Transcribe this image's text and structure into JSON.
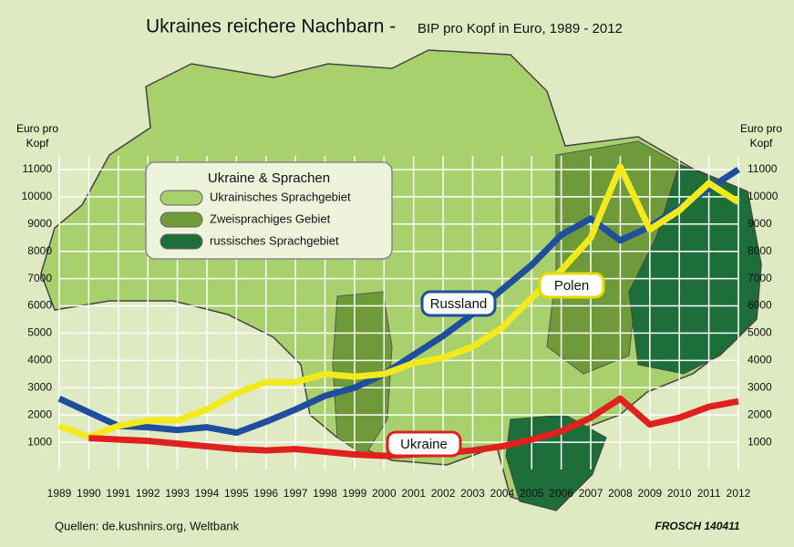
{
  "chart_data": {
    "type": "line",
    "title": "Ukraines reichere Nachbarn -",
    "subtitle": "BIP pro Kopf in Euro, 1989 - 2012",
    "ylabel": "Euro pro Kopf",
    "source": "Quellen: de.kushnirs.org, Weltbank",
    "signature": "FROSCH 140411",
    "x": [
      1989,
      1990,
      1991,
      1992,
      1993,
      1994,
      1995,
      1996,
      1997,
      1998,
      1999,
      2000,
      2001,
      2002,
      2003,
      2004,
      2005,
      2006,
      2007,
      2008,
      2009,
      2010,
      2011,
      2012
    ],
    "xlim": [
      1989,
      2012
    ],
    "xticks": [
      1989,
      1990,
      1991,
      1992,
      1993,
      1994,
      1995,
      1996,
      1997,
      1998,
      1999,
      2000,
      2001,
      2002,
      2003,
      2004,
      2005,
      2006,
      2007,
      2008,
      2009,
      2010,
      2011,
      2012
    ],
    "ylim": [
      0,
      11500
    ],
    "yticks": [
      1000,
      2000,
      3000,
      4000,
      5000,
      6000,
      7000,
      8000,
      9000,
      10000,
      11000
    ],
    "grid": true,
    "series": [
      {
        "name": "Russland",
        "color": "#1f4e9c",
        "values": [
          2600,
          2100,
          1600,
          1550,
          1450,
          1550,
          1350,
          1750,
          2200,
          2700,
          3000,
          3500,
          4200,
          4900,
          5700,
          6600,
          7500,
          8600,
          9200,
          8400,
          8900,
          9600,
          10300,
          11000
        ]
      },
      {
        "name": "Polen",
        "color": "#f2ea1a",
        "values": [
          1600,
          1200,
          1600,
          1800,
          1800,
          2200,
          2800,
          3200,
          3200,
          3500,
          3400,
          3500,
          3900,
          4100,
          4500,
          5200,
          6300,
          7300,
          8500,
          11100,
          8800,
          9500,
          10500,
          9800
        ]
      },
      {
        "name": "Ukraine",
        "color": "#e0201f",
        "values": [
          null,
          1150,
          1100,
          1050,
          950,
          850,
          750,
          700,
          750,
          650,
          550,
          500,
          550,
          600,
          700,
          850,
          1100,
          1400,
          1900,
          2600,
          1650,
          1900,
          2300,
          2500
        ]
      }
    ],
    "map_legend": {
      "title": "Ukraine & Sprachen",
      "items": [
        {
          "label": "Ukrainisches Sprachgebiet",
          "color": "#a8d16e"
        },
        {
          "label": "Zweisprachiges Gebiet",
          "color": "#6f9a3a"
        },
        {
          "label": "russisches Sprachgebiet",
          "color": "#1e6e3a"
        }
      ]
    }
  }
}
